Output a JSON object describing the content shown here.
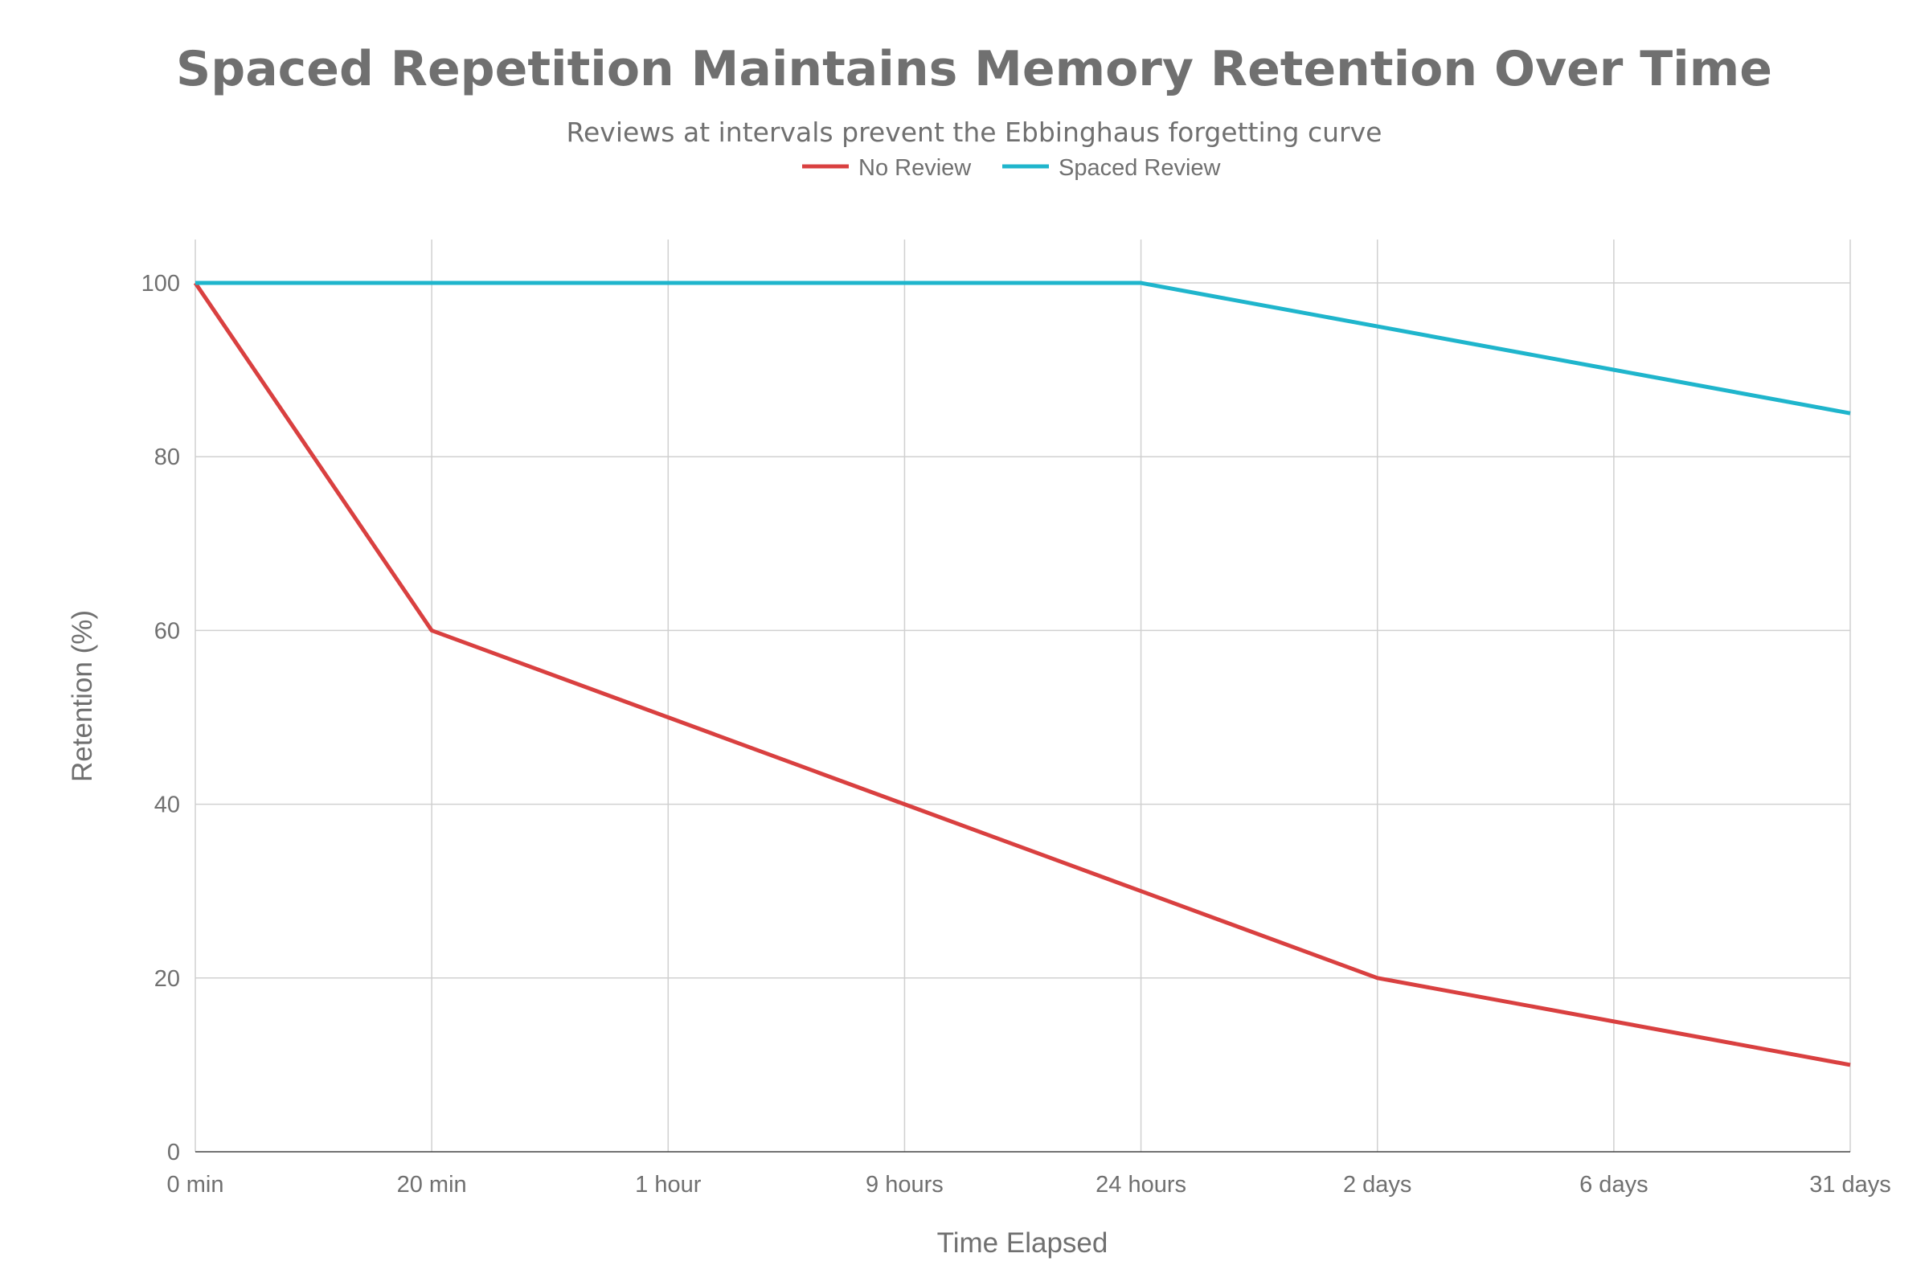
{
  "chart_data": {
    "type": "line",
    "title": "Spaced Repetition Maintains Memory Retention Over Time",
    "subtitle": "Reviews at intervals prevent the Ebbinghaus forgetting curve",
    "xlabel": "Time Elapsed",
    "ylabel": "Retention (%)",
    "categories": [
      "0 min",
      "20 min",
      "1 hour",
      "9 hours",
      "24 hours",
      "2 days",
      "6 days",
      "31 days"
    ],
    "ylim": [
      0,
      105
    ],
    "yticks": [
      0,
      20,
      40,
      60,
      80,
      100
    ],
    "grid": true,
    "legend_position": "top-center",
    "series": [
      {
        "name": "No Review",
        "color": "#d94040",
        "values": [
          100,
          60,
          50,
          40,
          30,
          20,
          15,
          10
        ]
      },
      {
        "name": "Spaced Review",
        "color": "#1fb5cc",
        "values": [
          100,
          100,
          100,
          100,
          100,
          95,
          90,
          85
        ]
      }
    ]
  }
}
